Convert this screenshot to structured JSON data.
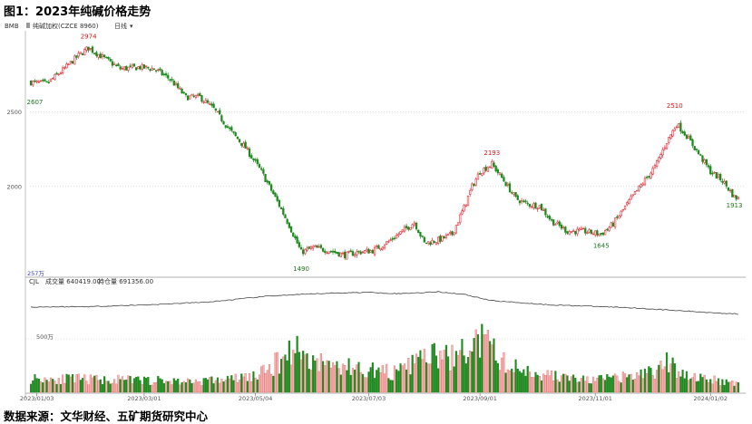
{
  "title": "图1：2023年纯碱价格走势",
  "source": "数据来源：文华财经、五矿期货研究中心",
  "legend": {
    "logo": "BMB",
    "series": "纯碱加权(CZCE 8960)",
    "period": "日线"
  },
  "volume_legend": {
    "indicator": "CJL",
    "volume_label": "成交量 640419.00",
    "oi_label": "持仓量 691356.00",
    "axis_top": "257万",
    "axis_mid": "500万"
  },
  "chart_data": {
    "type": "candlestick",
    "title": "",
    "y_ticks": [
      2000,
      2500
    ],
    "ylim": [
      1440,
      3020
    ],
    "x_tick_labels": [
      "2023/01/03",
      "2023/03/01",
      "2023/05/04",
      "2023/07/03",
      "2023/09/01",
      "2023/11/01",
      "2024/01/02"
    ],
    "x_tick_index": [
      3,
      57,
      113,
      170,
      226,
      284,
      342
    ],
    "n_bars": 357,
    "annotations": [
      {
        "text": "2974",
        "index": 29,
        "value": 2974,
        "kind": "high"
      },
      {
        "text": "2607",
        "index": 2,
        "value": 2607,
        "kind": "low"
      },
      {
        "text": "1490",
        "index": 136,
        "value": 1490,
        "kind": "low"
      },
      {
        "text": "2193",
        "index": 232,
        "value": 2193,
        "kind": "high"
      },
      {
        "text": "1645",
        "index": 287,
        "value": 1645,
        "kind": "low"
      },
      {
        "text": "2510",
        "index": 324,
        "value": 2510,
        "kind": "high"
      },
      {
        "text": "1913",
        "index": 354,
        "value": 1913,
        "kind": "low"
      }
    ],
    "close_path": [
      [
        0,
        2700
      ],
      [
        8,
        2690
      ],
      [
        16,
        2780
      ],
      [
        24,
        2880
      ],
      [
        29,
        2930
      ],
      [
        38,
        2850
      ],
      [
        45,
        2790
      ],
      [
        55,
        2800
      ],
      [
        62,
        2790
      ],
      [
        70,
        2720
      ],
      [
        78,
        2600
      ],
      [
        85,
        2600
      ],
      [
        92,
        2520
      ],
      [
        100,
        2380
      ],
      [
        108,
        2260
      ],
      [
        116,
        2100
      ],
      [
        124,
        1900
      ],
      [
        130,
        1740
      ],
      [
        136,
        1560
      ],
      [
        142,
        1590
      ],
      [
        150,
        1570
      ],
      [
        158,
        1540
      ],
      [
        165,
        1560
      ],
      [
        172,
        1570
      ],
      [
        180,
        1630
      ],
      [
        187,
        1700
      ],
      [
        193,
        1760
      ],
      [
        198,
        1620
      ],
      [
        205,
        1640
      ],
      [
        212,
        1680
      ],
      [
        218,
        1860
      ],
      [
        222,
        2000
      ],
      [
        226,
        2100
      ],
      [
        232,
        2150
      ],
      [
        238,
        2040
      ],
      [
        244,
        1920
      ],
      [
        250,
        1880
      ],
      [
        256,
        1870
      ],
      [
        262,
        1770
      ],
      [
        270,
        1700
      ],
      [
        278,
        1700
      ],
      [
        287,
        1680
      ],
      [
        293,
        1750
      ],
      [
        300,
        1880
      ],
      [
        306,
        1990
      ],
      [
        314,
        2130
      ],
      [
        320,
        2300
      ],
      [
        325,
        2420
      ],
      [
        330,
        2340
      ],
      [
        336,
        2220
      ],
      [
        342,
        2100
      ],
      [
        348,
        2040
      ],
      [
        354,
        1930
      ],
      [
        356,
        1920
      ]
    ],
    "volume_path": [
      [
        0,
        65
      ],
      [
        30,
        60
      ],
      [
        60,
        55
      ],
      [
        80,
        50
      ],
      [
        100,
        60
      ],
      [
        115,
        80
      ],
      [
        125,
        145
      ],
      [
        132,
        215
      ],
      [
        140,
        155
      ],
      [
        150,
        130
      ],
      [
        165,
        110
      ],
      [
        185,
        90
      ],
      [
        198,
        170
      ],
      [
        210,
        160
      ],
      [
        220,
        190
      ],
      [
        226,
        245
      ],
      [
        232,
        200
      ],
      [
        240,
        120
      ],
      [
        260,
        80
      ],
      [
        280,
        55
      ],
      [
        300,
        70
      ],
      [
        315,
        100
      ],
      [
        320,
        135
      ],
      [
        328,
        90
      ],
      [
        340,
        60
      ],
      [
        356,
        45
      ]
    ],
    "open_interest_path": [
      [
        0,
        370
      ],
      [
        30,
        372
      ],
      [
        60,
        380
      ],
      [
        90,
        392
      ],
      [
        120,
        418
      ],
      [
        150,
        430
      ],
      [
        170,
        434
      ],
      [
        185,
        428
      ],
      [
        205,
        436
      ],
      [
        218,
        425
      ],
      [
        232,
        398
      ],
      [
        260,
        380
      ],
      [
        300,
        368
      ],
      [
        330,
        352
      ],
      [
        350,
        342
      ],
      [
        356,
        340
      ]
    ],
    "volume_ylim": [
      0,
      460
    ],
    "oi_ylim": [
      0,
      460
    ]
  }
}
